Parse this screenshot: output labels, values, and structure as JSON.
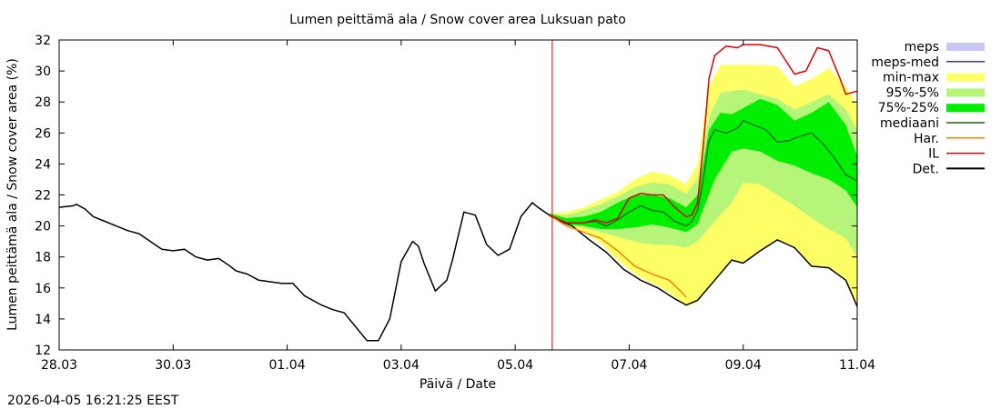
{
  "chart_data": {
    "type": "line",
    "title": "Lumen peittämä ala / Snow cover area Luksuan pato",
    "xlabel": "Päivä / Date",
    "ylabel": "Lumen peittämä ala / Snow cover area (%)",
    "xlim": [
      0,
      14
    ],
    "ylim": [
      12,
      32
    ],
    "x_ticks": [
      {
        "x": 0,
        "label": "28.03"
      },
      {
        "x": 2,
        "label": "30.03"
      },
      {
        "x": 4,
        "label": "01.04"
      },
      {
        "x": 6,
        "label": "03.04"
      },
      {
        "x": 8,
        "label": "05.04"
      },
      {
        "x": 10,
        "label": "07.04"
      },
      {
        "x": 12,
        "label": "09.04"
      },
      {
        "x": 14,
        "label": "11.04"
      }
    ],
    "y_ticks": [
      12,
      14,
      16,
      18,
      20,
      22,
      24,
      26,
      28,
      30,
      32
    ],
    "forecast_start": 8.65,
    "legend": [
      {
        "label": "meps",
        "kind": "band",
        "color": "#c8c8f5"
      },
      {
        "label": "meps-med",
        "kind": "line",
        "color": "#3a3aa0"
      },
      {
        "label": "min-max",
        "kind": "band",
        "color": "#ffff66"
      },
      {
        "label": "95%-5%",
        "kind": "band",
        "color": "#b4f57a"
      },
      {
        "label": "75%-25%",
        "kind": "band",
        "color": "#00ee00"
      },
      {
        "label": "mediaani",
        "kind": "line",
        "color": "#116611"
      },
      {
        "label": "Har.",
        "kind": "line",
        "color": "#ff8000"
      },
      {
        "label": "IL",
        "kind": "line",
        "color": "#dd0000"
      },
      {
        "label": "Det.",
        "kind": "line",
        "color": "#000000"
      }
    ],
    "series": [
      {
        "name": "Det.",
        "x": [
          0,
          0.25,
          0.3,
          0.45,
          0.6,
          0.8,
          1.0,
          1.2,
          1.4,
          1.6,
          1.8,
          2.0,
          2.2,
          2.4,
          2.6,
          2.8,
          3.0,
          3.1,
          3.3,
          3.5,
          3.7,
          3.9,
          4.1,
          4.3,
          4.6,
          4.8,
          5.0,
          5.2,
          5.4,
          5.6,
          5.8,
          6.0,
          6.2,
          6.3,
          6.4,
          6.6,
          6.8,
          6.9,
          7.1,
          7.3,
          7.5,
          7.7,
          7.9,
          8.1,
          8.3,
          8.4,
          8.6,
          8.8,
          9.0,
          9.3,
          9.6,
          9.9,
          10.2,
          10.5,
          10.8,
          11.0,
          11.2,
          11.5,
          11.8,
          12.0,
          12.3,
          12.6,
          12.9,
          13.2,
          13.5,
          13.8,
          14.0
        ],
        "values": [
          21.2,
          21.3,
          21.4,
          21.1,
          20.6,
          20.3,
          20.0,
          19.7,
          19.5,
          19.0,
          18.5,
          18.4,
          18.5,
          18.0,
          17.8,
          17.9,
          17.4,
          17.1,
          16.9,
          16.5,
          16.4,
          16.3,
          16.3,
          15.5,
          14.9,
          14.6,
          14.4,
          13.5,
          12.6,
          12.6,
          14.0,
          17.7,
          19.0,
          18.7,
          17.6,
          15.8,
          16.5,
          17.8,
          20.9,
          20.7,
          18.8,
          18.1,
          18.5,
          20.6,
          21.5,
          21.2,
          20.7,
          20.3,
          20.0,
          19.1,
          18.3,
          17.2,
          16.5,
          16.0,
          15.3,
          14.9,
          15.2,
          16.5,
          17.8,
          17.6,
          18.4,
          19.1,
          18.6,
          17.4,
          17.3,
          16.5,
          14.8
        ]
      },
      {
        "name": "Har.",
        "x": [
          8.6,
          8.9,
          9.2,
          9.5,
          9.8,
          10.1,
          10.4,
          10.7,
          10.9,
          11.0
        ],
        "values": [
          20.7,
          20.0,
          19.6,
          19.2,
          18.4,
          17.4,
          16.9,
          16.5,
          15.8,
          15.4
        ]
      },
      {
        "name": "IL",
        "x": [
          8.6,
          8.9,
          9.2,
          9.4,
          9.6,
          9.8,
          10.0,
          10.2,
          10.4,
          10.6,
          10.8,
          11.0,
          11.1,
          11.2,
          11.3,
          11.4,
          11.5,
          11.7,
          11.9,
          12.0,
          12.3,
          12.6,
          12.9,
          13.1,
          13.3,
          13.5,
          13.7,
          13.8,
          14.0
        ],
        "values": [
          20.7,
          20.2,
          20.2,
          20.4,
          20.2,
          20.5,
          21.8,
          22.1,
          22.0,
          22.0,
          21.2,
          20.6,
          20.7,
          21.5,
          25.2,
          29.5,
          31.0,
          31.6,
          31.5,
          31.7,
          31.7,
          31.5,
          29.8,
          30.0,
          31.5,
          31.3,
          29.5,
          28.5,
          28.7
        ]
      },
      {
        "name": "mediaani",
        "x": [
          8.6,
          8.9,
          9.2,
          9.4,
          9.6,
          9.8,
          10.0,
          10.2,
          10.4,
          10.6,
          10.8,
          11.0,
          11.1,
          11.2,
          11.3,
          11.4,
          11.5,
          11.7,
          11.9,
          12.0,
          12.2,
          12.4,
          12.6,
          12.8,
          13.0,
          13.2,
          13.4,
          13.6,
          13.8,
          14.0
        ],
        "values": [
          20.7,
          20.2,
          20.2,
          20.3,
          20.0,
          20.4,
          20.9,
          21.3,
          21.0,
          20.9,
          20.3,
          20.0,
          20.3,
          21.0,
          23.0,
          25.5,
          26.2,
          26.0,
          26.3,
          26.8,
          26.5,
          26.2,
          25.4,
          25.5,
          25.8,
          26.0,
          25.3,
          24.4,
          23.3,
          22.9
        ]
      },
      {
        "name": "min-max-upper",
        "x": [
          8.6,
          8.9,
          9.2,
          9.5,
          9.8,
          10.1,
          10.4,
          10.7,
          11.0,
          11.2,
          11.4,
          11.6,
          11.8,
          12.0,
          12.3,
          12.6,
          12.9,
          13.2,
          13.5,
          13.8,
          14.0
        ],
        "values": [
          20.8,
          20.9,
          21.2,
          21.7,
          22.2,
          23.0,
          23.5,
          23.3,
          22.7,
          24.0,
          29.0,
          30.4,
          30.4,
          30.4,
          30.4,
          30.3,
          29.0,
          29.5,
          30.2,
          29.0,
          27.8
        ]
      },
      {
        "name": "min-max-lower",
        "x": [
          8.6,
          8.9,
          9.2,
          9.5,
          9.8,
          10.1,
          10.4,
          10.7,
          11.0,
          11.2,
          11.5,
          11.8,
          12.0,
          12.3,
          12.6,
          12.9,
          13.2,
          13.5,
          13.8,
          14.0
        ],
        "values": [
          20.6,
          20.0,
          19.6,
          18.9,
          17.8,
          16.9,
          16.3,
          15.7,
          14.8,
          15.1,
          16.5,
          17.8,
          17.6,
          18.4,
          19.1,
          18.6,
          17.4,
          17.3,
          16.5,
          14.8
        ]
      },
      {
        "name": "95-5-upper",
        "x": [
          8.6,
          8.9,
          9.2,
          9.5,
          9.8,
          10.1,
          10.4,
          10.7,
          11.0,
          11.2,
          11.4,
          11.6,
          11.8,
          12.0,
          12.3,
          12.6,
          12.9,
          13.2,
          13.5,
          13.8,
          14.0
        ],
        "values": [
          20.8,
          20.7,
          21.0,
          21.4,
          21.9,
          22.5,
          22.8,
          22.7,
          22.1,
          23.0,
          27.0,
          28.6,
          28.7,
          28.8,
          28.5,
          28.2,
          27.5,
          28.0,
          28.5,
          27.5,
          26.2
        ]
      },
      {
        "name": "95-5-lower",
        "x": [
          8.6,
          8.9,
          9.2,
          9.5,
          9.8,
          10.1,
          10.4,
          10.7,
          11.0,
          11.2,
          11.5,
          11.8,
          12.0,
          12.3,
          12.6,
          12.9,
          13.2,
          13.5,
          13.8,
          14.0
        ],
        "values": [
          20.6,
          20.1,
          19.9,
          19.6,
          19.3,
          19.0,
          18.8,
          18.8,
          18.6,
          19.0,
          20.3,
          21.5,
          22.8,
          22.7,
          22.0,
          21.3,
          20.5,
          19.8,
          19.2,
          18.0
        ]
      },
      {
        "name": "75-25-upper",
        "x": [
          8.6,
          8.9,
          9.2,
          9.5,
          9.8,
          10.1,
          10.4,
          10.7,
          11.0,
          11.2,
          11.4,
          11.6,
          11.8,
          12.0,
          12.3,
          12.6,
          12.9,
          13.2,
          13.5,
          13.8,
          14.0
        ],
        "values": [
          20.8,
          20.5,
          20.6,
          20.9,
          21.5,
          22.0,
          22.0,
          21.8,
          21.2,
          22.0,
          26.2,
          27.3,
          27.2,
          27.6,
          28.2,
          27.8,
          26.8,
          27.3,
          28.0,
          26.5,
          24.5
        ]
      },
      {
        "name": "75-25-lower",
        "x": [
          8.6,
          8.9,
          9.2,
          9.5,
          9.8,
          10.1,
          10.4,
          10.7,
          11.0,
          11.2,
          11.5,
          11.8,
          12.0,
          12.3,
          12.6,
          12.9,
          13.2,
          13.5,
          13.8,
          14.0
        ],
        "values": [
          20.6,
          20.1,
          20.0,
          19.8,
          19.8,
          19.9,
          20.1,
          19.9,
          19.6,
          20.1,
          23.0,
          24.8,
          25.0,
          24.8,
          24.2,
          23.9,
          23.4,
          23.0,
          22.3,
          21.2
        ]
      }
    ]
  },
  "timestamp": "2026-04-05 16:21:25 EEST"
}
